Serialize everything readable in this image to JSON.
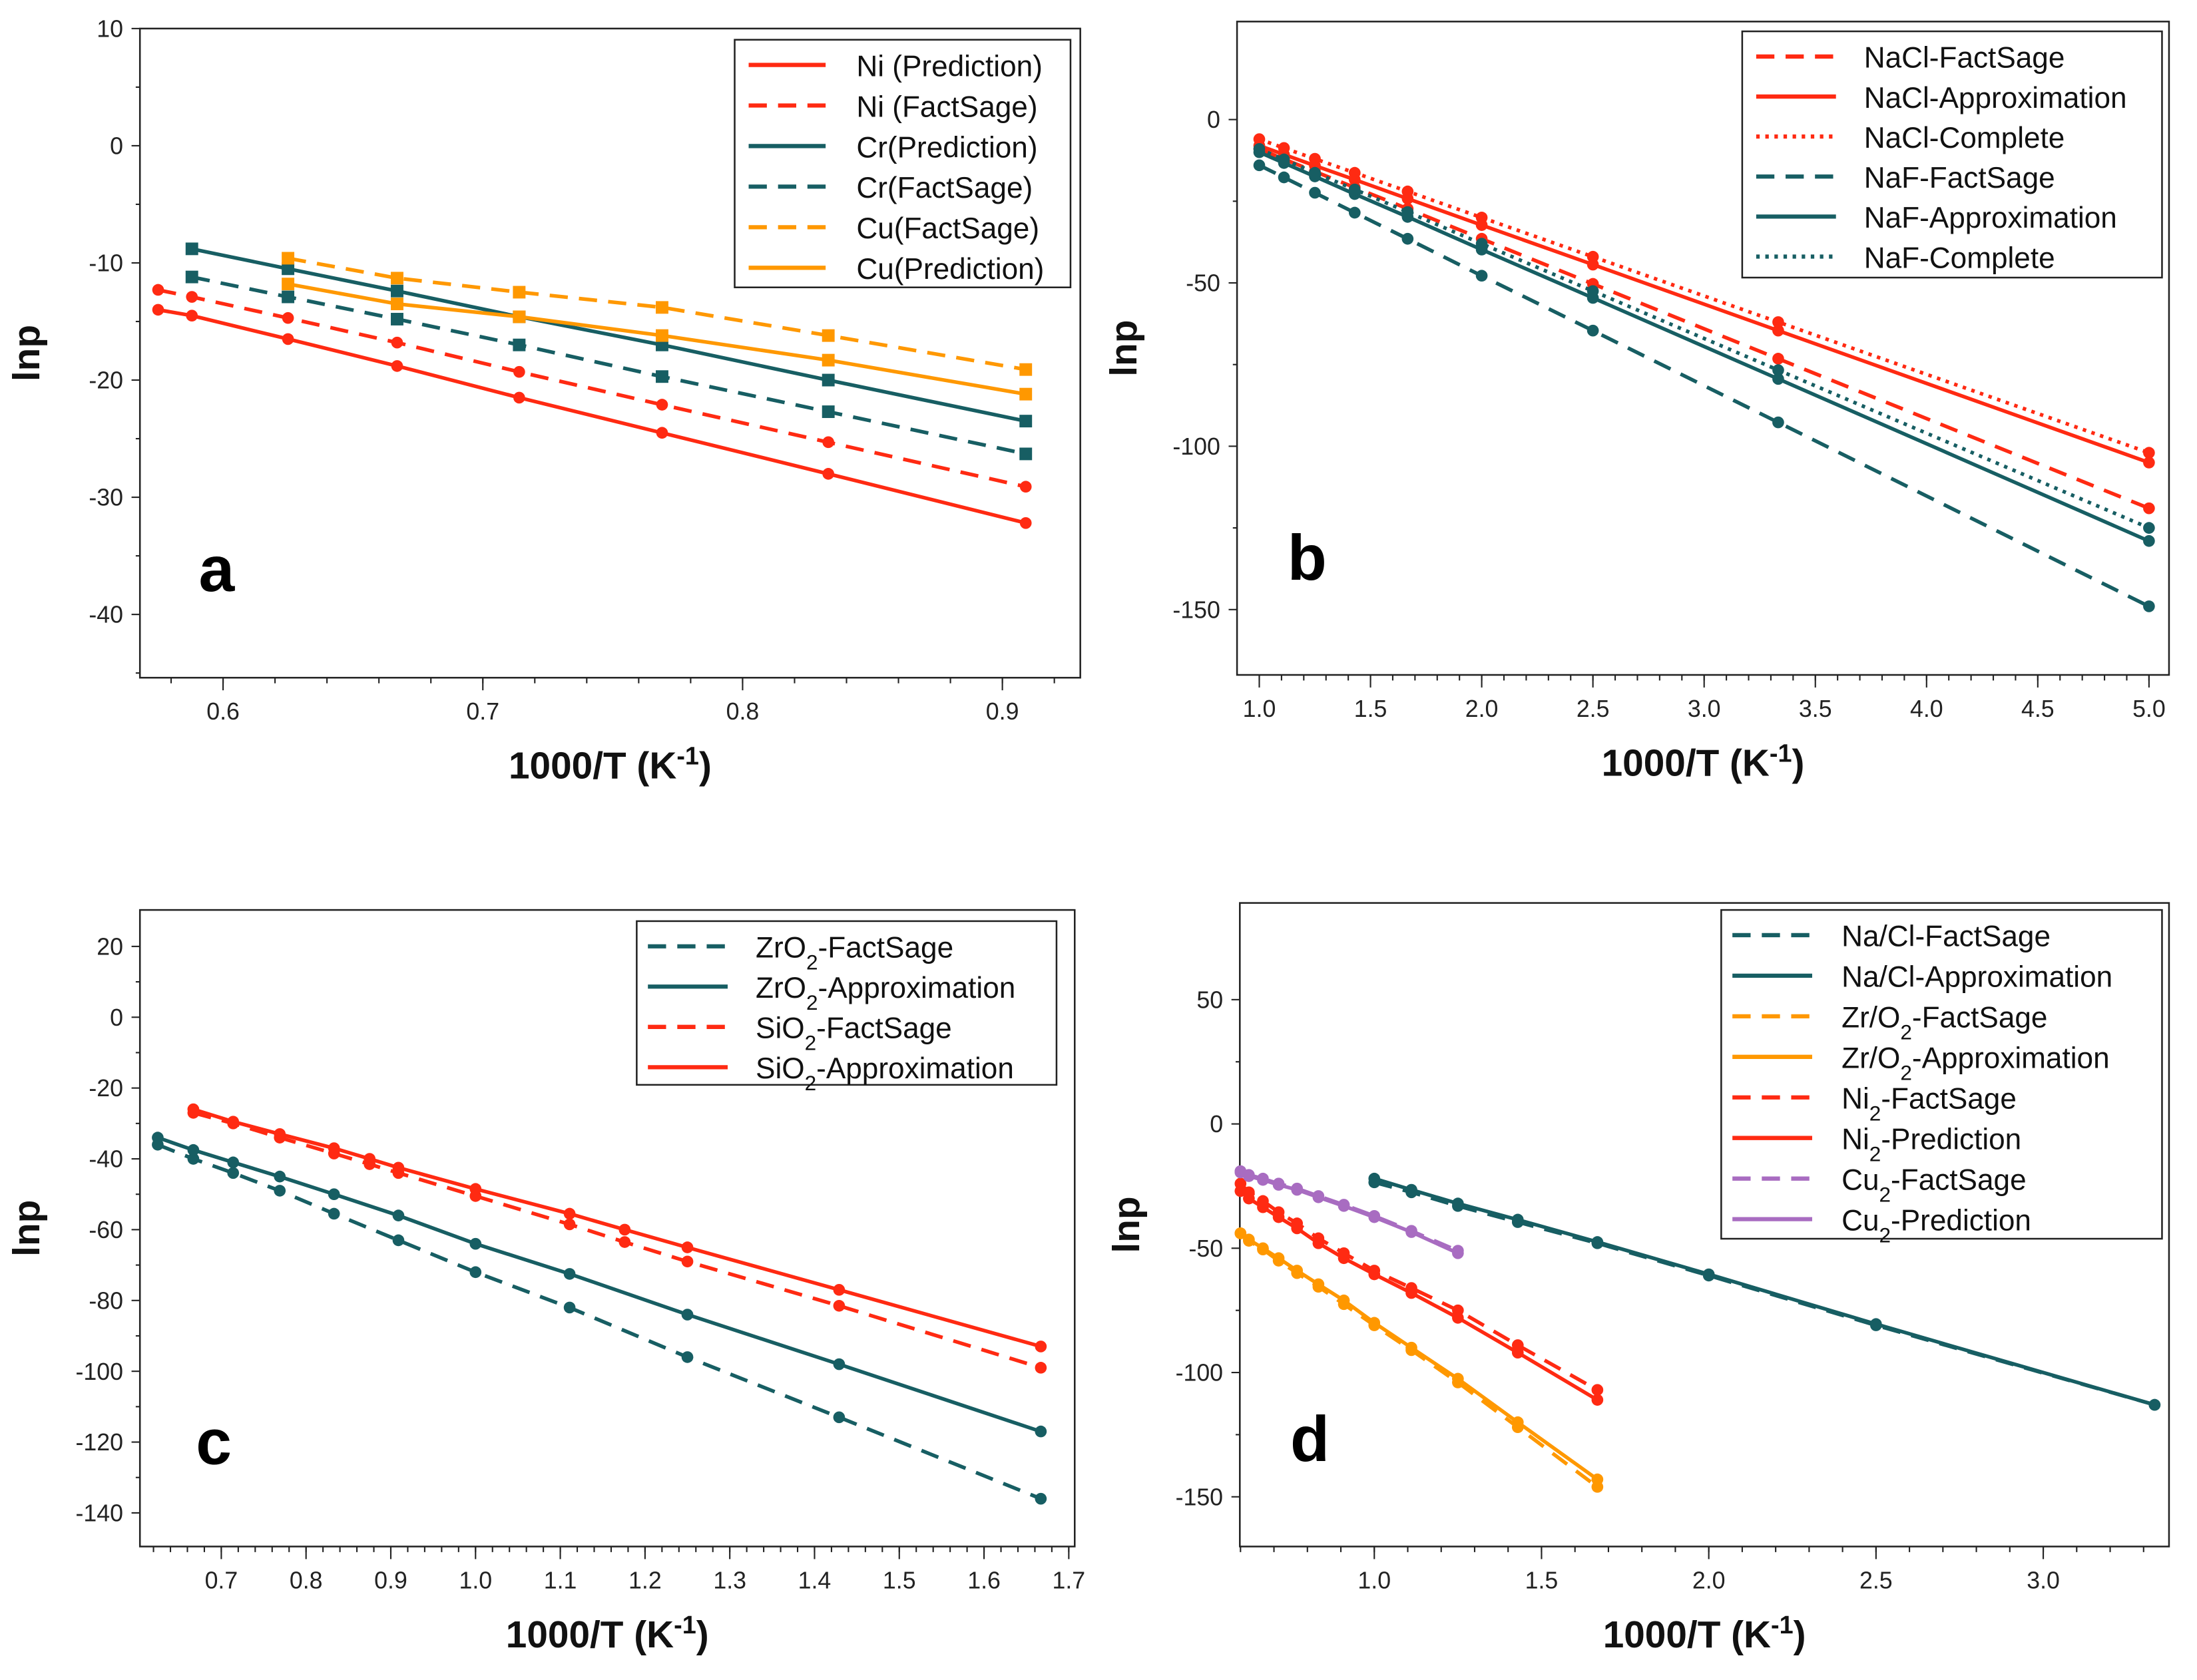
{
  "colors": {
    "red": "#FF2A12",
    "teal": "#175E63",
    "orange": "#FF9800",
    "purple": "#A86CC1"
  },
  "chart_data": [
    {
      "type": "line",
      "panel": "a",
      "xlabel": {
        "main": "1000/T (K",
        "sup": "-1",
        "end": ")"
      },
      "ylabel": "lnp",
      "xlim": [
        0.568,
        0.93
      ],
      "ylim": [
        -45.4,
        10
      ],
      "xticks": [
        "0.6",
        "0.7",
        "0.8",
        "0.9"
      ],
      "yticks": [
        "10",
        "0",
        "-10",
        "-20",
        "-30",
        "-40"
      ],
      "legend_position": "top-right",
      "series": [
        {
          "name": "Ni (Prediction)",
          "color": "red",
          "dash": "solid",
          "marker": "circle",
          "x": [
            0.575,
            0.588,
            0.625,
            0.667,
            0.714,
            0.769,
            0.833,
            0.909
          ],
          "y": [
            -14,
            -14.5,
            -16.5,
            -18.8,
            -21.5,
            -24.5,
            -28,
            -32.2
          ]
        },
        {
          "name": "Ni (FactSage)",
          "color": "red",
          "dash": "dashed",
          "marker": "circle",
          "x": [
            0.575,
            0.588,
            0.625,
            0.667,
            0.714,
            0.769,
            0.833,
            0.909
          ],
          "y": [
            -12.3,
            -12.9,
            -14.7,
            -16.8,
            -19.3,
            -22.1,
            -25.3,
            -29.1
          ]
        },
        {
          "name": "Cr(Prediction)",
          "color": "teal",
          "dash": "solid",
          "marker": "square",
          "x": [
            0.588,
            0.625,
            0.667,
            0.714,
            0.769,
            0.833,
            0.909
          ],
          "y": [
            -8.8,
            -10.5,
            -12.4,
            -14.6,
            -17,
            -20,
            -23.5
          ]
        },
        {
          "name": "Cr(FactSage)",
          "color": "teal",
          "dash": "dashed",
          "marker": "square",
          "x": [
            0.588,
            0.625,
            0.667,
            0.714,
            0.769,
            0.833,
            0.909
          ],
          "y": [
            -11.2,
            -12.9,
            -14.8,
            -17,
            -19.7,
            -22.7,
            -26.3
          ]
        },
        {
          "name": "Cu(FactSage)",
          "color": "orange",
          "dash": "dashed",
          "marker": "square",
          "x": [
            0.625,
            0.667,
            0.714,
            0.769,
            0.833,
            0.909
          ],
          "y": [
            -9.6,
            -11.3,
            -12.5,
            -13.8,
            -16.2,
            -19.1
          ]
        },
        {
          "name": "Cu(Prediction)",
          "color": "orange",
          "dash": "solid",
          "marker": "square",
          "x": [
            0.625,
            0.667,
            0.714,
            0.769,
            0.833,
            0.909
          ],
          "y": [
            -11.8,
            -13.5,
            -14.6,
            -16.2,
            -18.3,
            -21.2
          ]
        }
      ]
    },
    {
      "type": "line",
      "panel": "b",
      "xlabel": {
        "main": "1000/T (K",
        "sup": "-1",
        "end": ")"
      },
      "ylabel": "lnp",
      "xlim": [
        0.9,
        5.09
      ],
      "ylim": [
        -170,
        30
      ],
      "xticks": [
        "1.0",
        "1.5",
        "2.0",
        "2.5",
        "3.0",
        "3.5",
        "4.0",
        "4.5",
        "5.0"
      ],
      "yticks": [
        "0",
        "-50",
        "-100",
        "-150"
      ],
      "legend_position": "top-right",
      "series": [
        {
          "name": "NaCl-FactSage",
          "color": "red",
          "dash": "dashed",
          "marker": "circle",
          "x": [
            1.0,
            1.111,
            1.25,
            1.429,
            1.667,
            2.0,
            2.5,
            3.333,
            5.0
          ],
          "y": [
            -9,
            -12.1,
            -15.9,
            -20.8,
            -27.3,
            -36.5,
            -50.3,
            -73.2,
            -119
          ]
        },
        {
          "name": "NaCl-Approximation",
          "color": "red",
          "dash": "solid",
          "marker": "circle",
          "x": [
            1.0,
            1.111,
            1.25,
            1.429,
            1.667,
            2.0,
            2.5,
            3.333,
            5.0
          ],
          "y": [
            -8,
            -10.7,
            -14.1,
            -18.4,
            -24.2,
            -32.3,
            -44.4,
            -64.6,
            -105
          ]
        },
        {
          "name": "NaCl-Complete",
          "color": "red",
          "dash": "dotted",
          "marker": "circle",
          "x": [
            1.0,
            1.111,
            1.25,
            1.429,
            1.667,
            2.0,
            2.5,
            3.333,
            5.0
          ],
          "y": [
            -6,
            -8.7,
            -12,
            -16.3,
            -22,
            -30,
            -42,
            -62,
            -102
          ]
        },
        {
          "name": "NaF-FactSage",
          "color": "teal",
          "dash": "dashed",
          "marker": "circle",
          "x": [
            1.0,
            1.111,
            1.25,
            1.429,
            1.667,
            2.0,
            2.5,
            3.333,
            5.0
          ],
          "y": [
            -14,
            -17.7,
            -22.4,
            -28.5,
            -36.5,
            -47.8,
            -64.6,
            -92.7,
            -149
          ]
        },
        {
          "name": "NaF-Approximation",
          "color": "teal",
          "dash": "solid",
          "marker": "circle",
          "x": [
            1.0,
            1.111,
            1.25,
            1.429,
            1.667,
            2.0,
            2.5,
            3.333,
            5.0
          ],
          "y": [
            -10,
            -13.3,
            -17.4,
            -22.8,
            -29.8,
            -39.8,
            -54.6,
            -79.4,
            -129
          ]
        },
        {
          "name": "NaF-Complete",
          "color": "teal",
          "dash": "dotted",
          "marker": "circle",
          "x": [
            1.0,
            1.111,
            1.25,
            1.429,
            1.667,
            2.0,
            2.5,
            3.333,
            5.0
          ],
          "y": [
            -9,
            -12.2,
            -16.3,
            -21.4,
            -28.3,
            -38,
            -52.5,
            -76.7,
            -125
          ]
        }
      ]
    },
    {
      "type": "line",
      "panel": "c",
      "xlabel": {
        "main": "1000/T (K",
        "sup": "-1",
        "end": ")"
      },
      "ylabel": "lnp",
      "xlim": [
        0.604,
        1.707
      ],
      "ylim": [
        -149.5,
        30.3
      ],
      "xticks": [
        "0.7",
        "0.8",
        "0.9",
        "1.0",
        "1.1",
        "1.2",
        "1.3",
        "1.4",
        "1.5",
        "1.6",
        "1.7"
      ],
      "yticks": [
        "20",
        "0",
        "-20",
        "-40",
        "-60",
        "-80",
        "-100",
        "-120",
        "-140"
      ],
      "legend_position": "top-right",
      "series": [
        {
          "name": "ZrO2-FactSage",
          "color": "teal",
          "dash": "dashed",
          "marker": "circle",
          "x": [
            0.625,
            0.667,
            0.714,
            0.769,
            0.833,
            0.909,
            1.0,
            1.111,
            1.25,
            1.429,
            1.667
          ],
          "y": [
            -36,
            -40,
            -44,
            -49,
            -55.5,
            -63,
            -72,
            -82,
            -96,
            -113,
            -136
          ]
        },
        {
          "name": "ZrO2-Approximation",
          "color": "teal",
          "dash": "solid",
          "marker": "circle",
          "x": [
            0.625,
            0.667,
            0.714,
            0.769,
            0.833,
            0.909,
            1.0,
            1.111,
            1.25,
            1.429,
            1.667
          ],
          "y": [
            -34,
            -37.5,
            -41,
            -45,
            -50,
            -56,
            -64,
            -72.5,
            -84,
            -98,
            -117
          ]
        },
        {
          "name": "SiO2-FactSage",
          "color": "red",
          "dash": "dashed",
          "marker": "circle",
          "x": [
            0.667,
            0.714,
            0.769,
            0.833,
            0.875,
            0.909,
            1.0,
            1.111,
            1.176,
            1.25,
            1.429,
            1.667
          ],
          "y": [
            -27,
            -30,
            -34,
            -38.5,
            -41.5,
            -44,
            -50.5,
            -58.5,
            -63.5,
            -69,
            -81.5,
            -99
          ]
        },
        {
          "name": "SiO2-Approximation",
          "color": "red",
          "dash": "solid",
          "marker": "circle",
          "x": [
            0.667,
            0.714,
            0.769,
            0.833,
            0.875,
            0.909,
            1.0,
            1.111,
            1.176,
            1.25,
            1.429,
            1.667
          ],
          "y": [
            -26,
            -29.5,
            -33,
            -37,
            -40,
            -42.5,
            -48.5,
            -55.5,
            -60,
            -65,
            -77,
            -93
          ]
        }
      ]
    },
    {
      "type": "line",
      "panel": "d",
      "xlabel": {
        "main": "1000/T (K",
        "sup": "-1",
        "end": ")"
      },
      "ylabel": "lnp",
      "xlim": [
        0.598,
        3.376
      ],
      "ylim": [
        -170,
        88.9
      ],
      "xticks": [
        "1.0",
        "1.5",
        "2.0",
        "2.5",
        "3.0"
      ],
      "yticks": [
        "50",
        "0",
        "-50",
        "-100",
        "-150"
      ],
      "legend_position": "top-right",
      "series": [
        {
          "name": "Na/Cl-FactSage",
          "color": "teal",
          "dash": "dashed",
          "marker": "circle",
          "x": [
            1.0,
            1.111,
            1.25,
            1.429,
            1.667,
            2.0,
            2.5,
            3.333
          ],
          "y": [
            -23.5,
            -27.5,
            -33,
            -39.5,
            -48,
            -61,
            -81,
            -113
          ]
        },
        {
          "name": "Na/Cl-Approximation",
          "color": "teal",
          "dash": "solid",
          "marker": "circle",
          "x": [
            1.0,
            1.111,
            1.25,
            1.429,
            1.667,
            2.0,
            2.5,
            3.333
          ],
          "y": [
            -22,
            -26.5,
            -32,
            -38.5,
            -47.5,
            -60.5,
            -80.5,
            -113
          ]
        },
        {
          "name": "Zr/O2-FactSage",
          "color": "orange",
          "dash": "dashed",
          "marker": "circle",
          "x": [
            0.6,
            0.625,
            0.667,
            0.714,
            0.769,
            0.833,
            0.909,
            1.0,
            1.111,
            1.25,
            1.429,
            1.667
          ],
          "y": [
            -44,
            -47,
            -50.5,
            -55,
            -60,
            -65.5,
            -72.5,
            -81,
            -91,
            -104,
            -122,
            -146
          ]
        },
        {
          "name": "Zr/O2-Approximation",
          "color": "orange",
          "dash": "solid",
          "marker": "circle",
          "x": [
            0.6,
            0.625,
            0.667,
            0.714,
            0.769,
            0.833,
            0.909,
            1.0,
            1.111,
            1.25,
            1.429,
            1.667
          ],
          "y": [
            -44,
            -46.5,
            -50,
            -54,
            -59,
            -64.5,
            -71,
            -80,
            -90,
            -102.5,
            -120,
            -143
          ]
        },
        {
          "name": "Ni2-FactSage",
          "color": "red",
          "dash": "dashed",
          "marker": "circle",
          "x": [
            0.6,
            0.625,
            0.667,
            0.714,
            0.769,
            0.833,
            0.909,
            1.0,
            1.111,
            1.25,
            1.429,
            1.667
          ],
          "y": [
            -24,
            -27.5,
            -31,
            -35.5,
            -40,
            -46,
            -52,
            -59,
            -66,
            -75,
            -89,
            -107
          ]
        },
        {
          "name": "Ni2-Prediction",
          "color": "red",
          "dash": "solid",
          "marker": "circle",
          "x": [
            0.6,
            0.625,
            0.667,
            0.714,
            0.769,
            0.833,
            0.909,
            1.0,
            1.111,
            1.25,
            1.429,
            1.667
          ],
          "y": [
            -27,
            -30,
            -33.5,
            -37.5,
            -42,
            -48,
            -54,
            -60.5,
            -68,
            -78,
            -92,
            -111
          ]
        },
        {
          "name": "Cu2-FactSage",
          "color": "purple",
          "dash": "dashed",
          "marker": "circle",
          "x": [
            0.6,
            0.625,
            0.667,
            0.714,
            0.769,
            0.833,
            0.909,
            1.0,
            1.111,
            1.25
          ],
          "y": [
            -19,
            -20.5,
            -22,
            -24,
            -26,
            -29,
            -32.5,
            -37,
            -43,
            -51
          ]
        },
        {
          "name": "Cu2-Prediction",
          "color": "purple",
          "dash": "solid",
          "marker": "circle",
          "x": [
            0.6,
            0.625,
            0.667,
            0.714,
            0.769,
            0.833,
            0.909,
            1.0,
            1.111,
            1.25
          ],
          "y": [
            -19.5,
            -21,
            -22.5,
            -24.5,
            -26.5,
            -29.5,
            -33,
            -37.5,
            -43.5,
            -52
          ]
        }
      ]
    }
  ]
}
